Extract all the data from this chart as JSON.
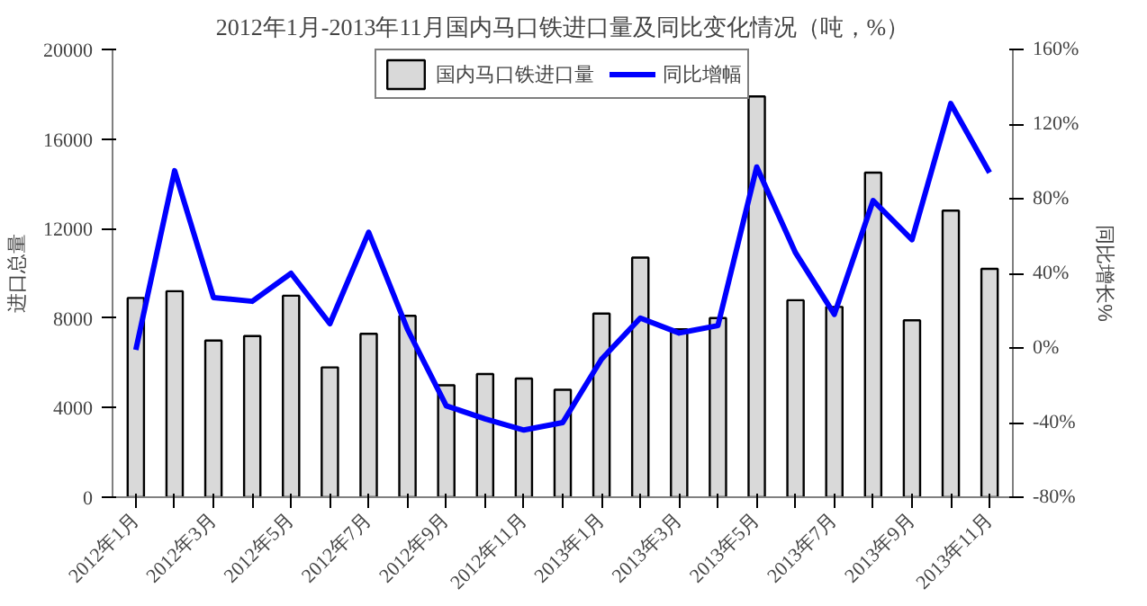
{
  "chart_data": {
    "type": "bar",
    "title": "2012年1月-2013年11月国内马口铁进口量及同比变化情况（吨，%）",
    "ylabel": "进口总量",
    "y2label": "同比增长%",
    "categories": [
      "2012年1月",
      null,
      "2012年3月",
      null,
      "2012年5月",
      null,
      "2012年7月",
      null,
      "2012年9月",
      null,
      "2012年11月",
      null,
      "2013年1月",
      null,
      "2013年3月",
      null,
      "2013年5月",
      null,
      "2013年7月",
      null,
      "2013年9月",
      null,
      "2013年11月"
    ],
    "series": [
      {
        "name": "国内马口铁进口量",
        "color": "#d9d9d9",
        "values": [
          8900,
          9200,
          7000,
          7200,
          9000,
          5800,
          7300,
          8100,
          5000,
          5500,
          5300,
          4800,
          8200,
          10700,
          7500,
          8000,
          17900,
          8800,
          8500,
          14500,
          7900,
          12800,
          10200
        ]
      },
      {
        "name": "同比增幅",
        "type": "line",
        "axis": "y2",
        "color": "#0000ff",
        "values": [
          -1,
          95,
          27,
          25,
          40,
          13,
          62,
          10,
          -31,
          -38,
          -44,
          -40,
          -6,
          16,
          8,
          12,
          97,
          51,
          18,
          79,
          58,
          131,
          94
        ]
      }
    ],
    "ylim": [
      0,
      20000
    ],
    "yticks": [
      0,
      4000,
      8000,
      12000,
      16000,
      20000
    ],
    "y2lim": [
      -80,
      160
    ],
    "y2ticks": [
      {
        "value": -80,
        "label": "-80%"
      },
      {
        "value": -40,
        "label": "-40%"
      },
      {
        "value": 0,
        "label": "0%"
      },
      {
        "value": 40,
        "label": "40%"
      },
      {
        "value": 80,
        "label": "80%"
      },
      {
        "value": 120,
        "label": "120%"
      },
      {
        "value": 160,
        "label": "160%"
      }
    ],
    "legend": "top",
    "grid": false
  }
}
